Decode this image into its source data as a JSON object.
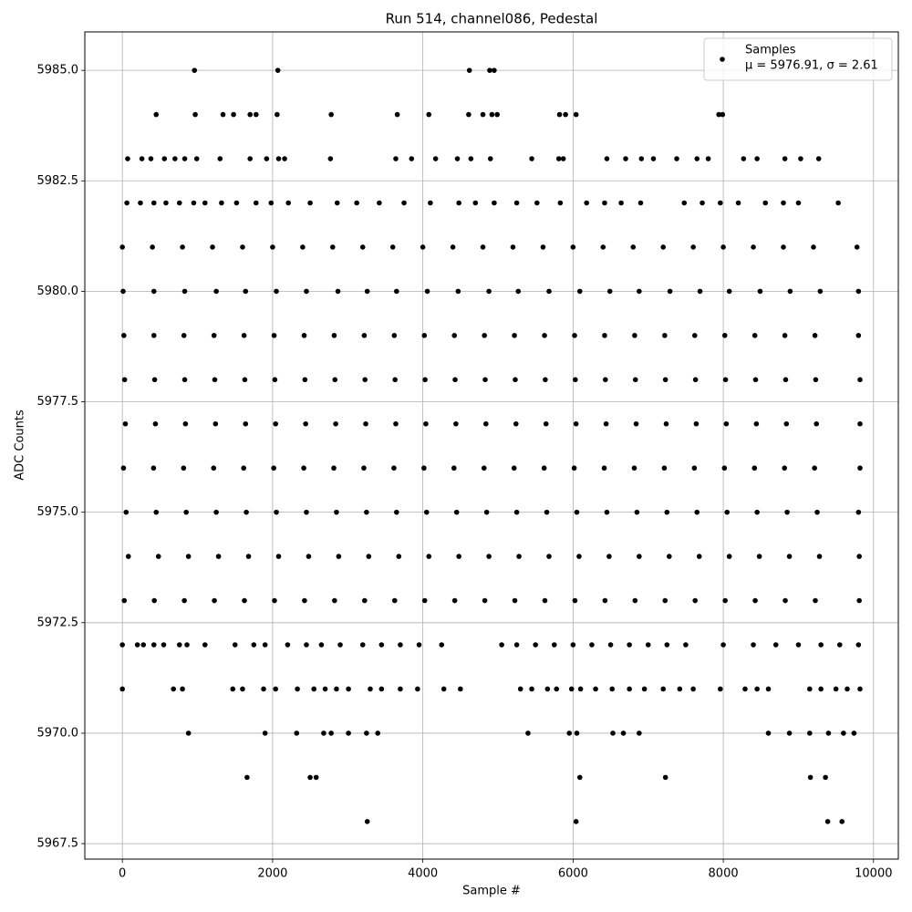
{
  "chart_data": {
    "type": "scatter",
    "title": "Run 514, channel086, Pedestal",
    "x_label": "Sample #",
    "y_label": "ADC Counts",
    "xlim": [
      -500,
      10330
    ],
    "ylim": [
      5967.15,
      5985.87
    ],
    "xticks": [
      0,
      2000,
      4000,
      6000,
      8000,
      10000
    ],
    "yticks": [
      5967.5,
      {
        "value": 5970,
        "label": "5970.0"
      },
      5972.5,
      {
        "value": 5975,
        "label": "5975.0"
      },
      5977.5,
      {
        "value": 5980,
        "label": "5980.0"
      },
      5982.5,
      {
        "value": 5985,
        "label": "5985.0"
      }
    ],
    "grid": true,
    "legend": "upper right",
    "legend_note": "μ = 5976.91, σ = 2.61",
    "series": [
      {
        "name": "Samples",
        "color": "#000000",
        "x": [
          960,
          2070,
          4620,
          4890,
          4950,
          450,
          970,
          1340,
          1480,
          1700,
          1780,
          2060,
          2780,
          3660,
          4080,
          4610,
          4800,
          4920,
          4990,
          5820,
          5900,
          6040,
          7940,
          7990,
          70,
          260,
          380,
          560,
          700,
          830,
          990,
          1300,
          1700,
          1920,
          2080,
          2160,
          2770,
          3640,
          3850,
          4170,
          4460,
          4640,
          4900,
          5450,
          5810,
          5870,
          6450,
          6700,
          6910,
          7070,
          7380,
          7650,
          7800,
          8270,
          8450,
          8820,
          9030,
          9270,
          60,
          240,
          420,
          580,
          760,
          950,
          1100,
          1320,
          1520,
          1780,
          1980,
          2210,
          2500,
          2860,
          3120,
          3420,
          3750,
          4100,
          4480,
          4700,
          4950,
          5250,
          5520,
          5830,
          6180,
          6420,
          6640,
          6900,
          7480,
          7720,
          7960,
          8200,
          8560,
          8800,
          9000,
          9530,
          0,
          400,
          800,
          1200,
          1600,
          2000,
          2400,
          2800,
          3200,
          3600,
          4000,
          4400,
          4800,
          5200,
          5600,
          6000,
          6400,
          6800,
          7200,
          7600,
          8000,
          8400,
          8800,
          9200,
          9780,
          10,
          420,
          830,
          1250,
          1640,
          2050,
          2450,
          2870,
          3260,
          3650,
          4060,
          4470,
          4880,
          5270,
          5680,
          6090,
          6490,
          6880,
          7290,
          7690,
          8080,
          8490,
          8890,
          9290,
          9800,
          20,
          420,
          820,
          1220,
          1620,
          2020,
          2420,
          2820,
          3220,
          3620,
          4020,
          4420,
          4820,
          5220,
          5620,
          6020,
          6420,
          6820,
          7220,
          7620,
          8020,
          8420,
          8820,
          9220,
          9800,
          30,
          430,
          830,
          1230,
          1630,
          2030,
          2430,
          2830,
          3230,
          3630,
          4030,
          4430,
          4830,
          5230,
          5630,
          6030,
          6430,
          6830,
          7230,
          7630,
          8030,
          8430,
          8830,
          9230,
          9820,
          40,
          440,
          840,
          1240,
          1640,
          2040,
          2440,
          2840,
          3240,
          3640,
          4040,
          4440,
          4840,
          5240,
          5640,
          6040,
          6440,
          6840,
          7240,
          7640,
          8040,
          8440,
          8840,
          9240,
          9820,
          15,
          415,
          815,
          1215,
          1615,
          2015,
          2415,
          2815,
          3215,
          3615,
          4015,
          4415,
          4815,
          5215,
          5615,
          6015,
          6415,
          6815,
          7215,
          7615,
          8015,
          8415,
          8815,
          9215,
          9820,
          50,
          450,
          850,
          1250,
          1650,
          2050,
          2450,
          2850,
          3250,
          3650,
          4050,
          4450,
          4850,
          5250,
          5650,
          6050,
          6450,
          6850,
          7250,
          7650,
          8050,
          8450,
          8850,
          9250,
          9800,
          80,
          480,
          880,
          1280,
          1680,
          2080,
          2480,
          2880,
          3280,
          3680,
          4080,
          4480,
          4880,
          5280,
          5680,
          6080,
          6480,
          6880,
          7280,
          7680,
          8080,
          8480,
          8880,
          9280,
          9810,
          25,
          425,
          825,
          1225,
          1625,
          2025,
          2425,
          2825,
          3225,
          3625,
          4025,
          4425,
          4825,
          5225,
          5625,
          6025,
          6425,
          6825,
          7225,
          7625,
          8025,
          8425,
          8825,
          9225,
          9810,
          0,
          200,
          280,
          420,
          550,
          760,
          860,
          1100,
          1500,
          1750,
          1900,
          2200,
          2450,
          2650,
          2900,
          3200,
          3450,
          3700,
          3950,
          4250,
          5050,
          5250,
          5500,
          5750,
          6000,
          6250,
          6500,
          6750,
          7000,
          7250,
          7500,
          8000,
          8400,
          8700,
          9000,
          9300,
          9550,
          9800,
          0,
          680,
          800,
          1470,
          1600,
          1880,
          2040,
          2330,
          2550,
          2700,
          2850,
          3010,
          3300,
          3450,
          3700,
          3930,
          4280,
          4500,
          5300,
          5450,
          5660,
          5780,
          5980,
          6100,
          6300,
          6520,
          6750,
          6950,
          7200,
          7420,
          7600,
          7960,
          8290,
          8450,
          8600,
          9150,
          9300,
          9500,
          9650,
          9820,
          880,
          1900,
          2320,
          2680,
          2780,
          3010,
          3250,
          3400,
          5400,
          5950,
          6050,
          6530,
          6670,
          6880,
          8600,
          8880,
          9150,
          9400,
          9600,
          9740,
          1660,
          2500,
          2580,
          6090,
          7230,
          9160,
          9360,
          3260,
          6040,
          9390,
          9580
        ],
        "values": [
          5985,
          5985,
          5985,
          5985,
          5985,
          5984,
          5984,
          5984,
          5984,
          5984,
          5984,
          5984,
          5984,
          5984,
          5984,
          5984,
          5984,
          5984,
          5984,
          5984,
          5984,
          5984,
          5984,
          5984,
          5983,
          5983,
          5983,
          5983,
          5983,
          5983,
          5983,
          5983,
          5983,
          5983,
          5983,
          5983,
          5983,
          5983,
          5983,
          5983,
          5983,
          5983,
          5983,
          5983,
          5983,
          5983,
          5983,
          5983,
          5983,
          5983,
          5983,
          5983,
          5983,
          5983,
          5983,
          5983,
          5983,
          5983,
          5982,
          5982,
          5982,
          5982,
          5982,
          5982,
          5982,
          5982,
          5982,
          5982,
          5982,
          5982,
          5982,
          5982,
          5982,
          5982,
          5982,
          5982,
          5982,
          5982,
          5982,
          5982,
          5982,
          5982,
          5982,
          5982,
          5982,
          5982,
          5982,
          5982,
          5982,
          5982,
          5982,
          5982,
          5982,
          5982,
          5981,
          5981,
          5981,
          5981,
          5981,
          5981,
          5981,
          5981,
          5981,
          5981,
          5981,
          5981,
          5981,
          5981,
          5981,
          5981,
          5981,
          5981,
          5981,
          5981,
          5981,
          5981,
          5981,
          5981,
          5981,
          5980,
          5980,
          5980,
          5980,
          5980,
          5980,
          5980,
          5980,
          5980,
          5980,
          5980,
          5980,
          5980,
          5980,
          5980,
          5980,
          5980,
          5980,
          5980,
          5980,
          5980,
          5980,
          5980,
          5980,
          5980,
          5979,
          5979,
          5979,
          5979,
          5979,
          5979,
          5979,
          5979,
          5979,
          5979,
          5979,
          5979,
          5979,
          5979,
          5979,
          5979,
          5979,
          5979,
          5979,
          5979,
          5979,
          5979,
          5979,
          5979,
          5979,
          5978,
          5978,
          5978,
          5978,
          5978,
          5978,
          5978,
          5978,
          5978,
          5978,
          5978,
          5978,
          5978,
          5978,
          5978,
          5978,
          5978,
          5978,
          5978,
          5978,
          5978,
          5978,
          5978,
          5978,
          5978,
          5977,
          5977,
          5977,
          5977,
          5977,
          5977,
          5977,
          5977,
          5977,
          5977,
          5977,
          5977,
          5977,
          5977,
          5977,
          5977,
          5977,
          5977,
          5977,
          5977,
          5977,
          5977,
          5977,
          5977,
          5977,
          5976,
          5976,
          5976,
          5976,
          5976,
          5976,
          5976,
          5976,
          5976,
          5976,
          5976,
          5976,
          5976,
          5976,
          5976,
          5976,
          5976,
          5976,
          5976,
          5976,
          5976,
          5976,
          5976,
          5976,
          5976,
          5975,
          5975,
          5975,
          5975,
          5975,
          5975,
          5975,
          5975,
          5975,
          5975,
          5975,
          5975,
          5975,
          5975,
          5975,
          5975,
          5975,
          5975,
          5975,
          5975,
          5975,
          5975,
          5975,
          5975,
          5975,
          5974,
          5974,
          5974,
          5974,
          5974,
          5974,
          5974,
          5974,
          5974,
          5974,
          5974,
          5974,
          5974,
          5974,
          5974,
          5974,
          5974,
          5974,
          5974,
          5974,
          5974,
          5974,
          5974,
          5974,
          5974,
          5973,
          5973,
          5973,
          5973,
          5973,
          5973,
          5973,
          5973,
          5973,
          5973,
          5973,
          5973,
          5973,
          5973,
          5973,
          5973,
          5973,
          5973,
          5973,
          5973,
          5973,
          5973,
          5973,
          5973,
          5973,
          5972,
          5972,
          5972,
          5972,
          5972,
          5972,
          5972,
          5972,
          5972,
          5972,
          5972,
          5972,
          5972,
          5972,
          5972,
          5972,
          5972,
          5972,
          5972,
          5972,
          5972,
          5972,
          5972,
          5972,
          5972,
          5972,
          5972,
          5972,
          5972,
          5972,
          5972,
          5972,
          5972,
          5972,
          5972,
          5972,
          5972,
          5972,
          5971,
          5971,
          5971,
          5971,
          5971,
          5971,
          5971,
          5971,
          5971,
          5971,
          5971,
          5971,
          5971,
          5971,
          5971,
          5971,
          5971,
          5971,
          5971,
          5971,
          5971,
          5971,
          5971,
          5971,
          5971,
          5971,
          5971,
          5971,
          5971,
          5971,
          5971,
          5971,
          5971,
          5971,
          5971,
          5971,
          5971,
          5971,
          5971,
          5971,
          5970,
          5970,
          5970,
          5970,
          5970,
          5970,
          5970,
          5970,
          5970,
          5970,
          5970,
          5970,
          5970,
          5970,
          5970,
          5970,
          5970,
          5970,
          5970,
          5970,
          5969,
          5969,
          5969,
          5969,
          5969,
          5969,
          5969,
          5968,
          5968,
          5968,
          5968
        ]
      }
    ]
  }
}
